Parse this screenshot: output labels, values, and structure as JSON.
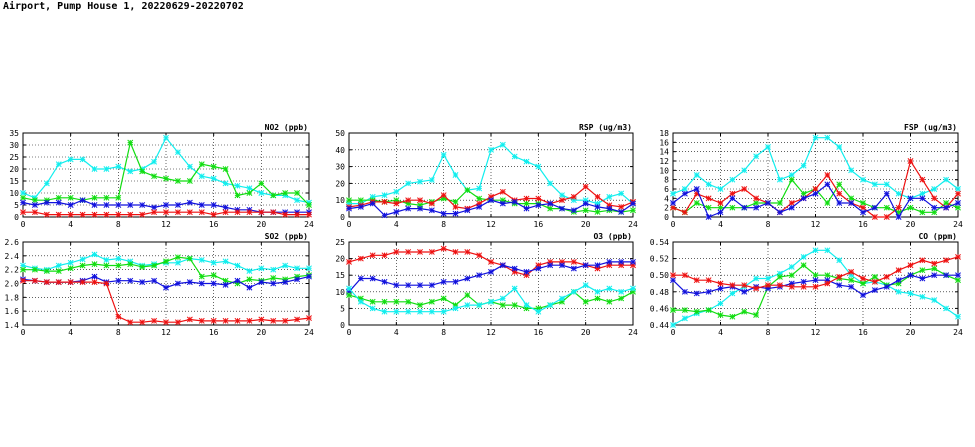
{
  "title": "Airport, Pump House 1, 20220629-20220702",
  "colors": {
    "red": "#ee1111",
    "green": "#11dd11",
    "blue": "#1111dd",
    "cyan": "#11eeee"
  },
  "chart_data": [
    {
      "type": "line",
      "title": "NO2 (ppb)",
      "x_ticks": [
        0,
        4,
        8,
        12,
        16,
        20,
        24
      ],
      "xlim": [
        0,
        24
      ],
      "ylim": [
        0,
        35
      ],
      "y_ticks": [
        "0",
        "5",
        "10",
        "15",
        "20",
        "25",
        "30",
        "35"
      ],
      "y_values": [
        0,
        5,
        10,
        15,
        20,
        25,
        30,
        35
      ],
      "grid": true,
      "series": [
        {
          "color": "cyan",
          "values": [
            10,
            8,
            14,
            22,
            24,
            24,
            20,
            20,
            21,
            19,
            20,
            23,
            33,
            27,
            21,
            17,
            16,
            14,
            13,
            12,
            10,
            9,
            9,
            7,
            6
          ]
        },
        {
          "color": "green",
          "values": [
            8,
            7,
            7,
            8,
            8,
            7,
            8,
            8,
            8,
            31,
            19,
            17,
            16,
            15,
            15,
            22,
            21,
            20,
            9,
            10,
            14,
            9,
            10,
            10,
            5
          ]
        },
        {
          "color": "blue",
          "values": [
            6,
            5,
            6,
            6,
            5,
            7,
            5,
            5,
            5,
            5,
            5,
            4,
            5,
            5,
            6,
            5,
            5,
            4,
            3,
            3,
            2,
            2,
            2,
            2,
            2
          ]
        },
        {
          "color": "red",
          "values": [
            2,
            2,
            1,
            1,
            1,
            1,
            1,
            1,
            1,
            1,
            1,
            2,
            2,
            2,
            2,
            2,
            1,
            2,
            2,
            2,
            2,
            2,
            1,
            1,
            1
          ]
        }
      ]
    },
    {
      "type": "line",
      "title": "RSP (ug/m3)",
      "x_ticks": [
        0,
        4,
        8,
        12,
        16,
        20,
        24
      ],
      "xlim": [
        0,
        24
      ],
      "ylim": [
        0,
        50
      ],
      "y_ticks": [
        "0",
        "10",
        "20",
        "30",
        "40",
        "50"
      ],
      "y_values": [
        0,
        10,
        20,
        30,
        40,
        50
      ],
      "grid": true,
      "series": [
        {
          "color": "cyan",
          "values": [
            8,
            8,
            12,
            13,
            15,
            20,
            21,
            22,
            37,
            25,
            16,
            17,
            40,
            43,
            36,
            33,
            30,
            20,
            13,
            10,
            10,
            8,
            12,
            14,
            8
          ]
        },
        {
          "color": "green",
          "values": [
            10,
            10,
            10,
            9,
            10,
            8,
            7,
            9,
            11,
            9,
            16,
            11,
            10,
            10,
            8,
            8,
            8,
            5,
            5,
            3,
            4,
            3,
            4,
            3,
            4
          ]
        },
        {
          "color": "red",
          "values": [
            6,
            7,
            9,
            9,
            8,
            10,
            10,
            8,
            13,
            6,
            5,
            8,
            12,
            15,
            10,
            11,
            11,
            8,
            10,
            12,
            18,
            12,
            7,
            6,
            9
          ]
        },
        {
          "color": "blue",
          "values": [
            5,
            6,
            8,
            1,
            3,
            5,
            5,
            4,
            2,
            2,
            4,
            6,
            10,
            8,
            9,
            5,
            7,
            8,
            5,
            4,
            8,
            6,
            5,
            3,
            8
          ]
        }
      ]
    },
    {
      "type": "line",
      "title": "FSP (ug/m3)",
      "x_ticks": [
        0,
        4,
        8,
        12,
        16,
        20,
        24
      ],
      "xlim": [
        0,
        24
      ],
      "ylim": [
        0,
        18
      ],
      "y_ticks": [
        "0",
        "2",
        "4",
        "6",
        "8",
        "10",
        "12",
        "14",
        "16",
        "18"
      ],
      "y_values": [
        0,
        2,
        4,
        6,
        8,
        10,
        12,
        14,
        16,
        18
      ],
      "grid": true,
      "series": [
        {
          "color": "cyan",
          "values": [
            5,
            6,
            9,
            7,
            6,
            8,
            10,
            13,
            15,
            8,
            9,
            11,
            17,
            17,
            15,
            10,
            8,
            7,
            7,
            5,
            4,
            5,
            6,
            8,
            6
          ]
        },
        {
          "color": "green",
          "values": [
            2,
            1,
            3,
            2,
            2,
            2,
            2,
            3,
            3,
            3,
            8,
            5,
            6,
            3,
            7,
            4,
            3,
            2,
            2,
            1,
            2,
            1,
            1,
            3,
            2
          ]
        },
        {
          "color": "red",
          "values": [
            2,
            1,
            5,
            4,
            3,
            5,
            6,
            4,
            3,
            1,
            3,
            4,
            6,
            9,
            5,
            3,
            2,
            0,
            0,
            2,
            12,
            8,
            4,
            2,
            5
          ]
        },
        {
          "color": "blue",
          "values": [
            3,
            5,
            6,
            0,
            1,
            4,
            2,
            2,
            3,
            1,
            2,
            4,
            5,
            7,
            3,
            3,
            1,
            2,
            5,
            0,
            4,
            4,
            2,
            2,
            3
          ]
        }
      ]
    },
    {
      "type": "line",
      "title": "SO2 (ppb)",
      "x_ticks": [
        0,
        4,
        8,
        12,
        16,
        20,
        24
      ],
      "xlim": [
        0,
        24
      ],
      "ylim": [
        1.4,
        2.6
      ],
      "y_ticks": [
        "1.4",
        "1.6",
        "1.8",
        "2.0",
        "2.2",
        "2.4",
        "2.6"
      ],
      "y_values": [
        1.4,
        1.6,
        1.8,
        2.0,
        2.2,
        2.4,
        2.6
      ],
      "grid": true,
      "series": [
        {
          "color": "cyan",
          "values": [
            2.26,
            2.22,
            2.2,
            2.26,
            2.3,
            2.35,
            2.42,
            2.34,
            2.36,
            2.32,
            2.26,
            2.28,
            2.3,
            2.3,
            2.36,
            2.34,
            2.3,
            2.32,
            2.26,
            2.18,
            2.22,
            2.2,
            2.26,
            2.22,
            2.22
          ]
        },
        {
          "color": "green",
          "values": [
            2.2,
            2.2,
            2.18,
            2.18,
            2.22,
            2.26,
            2.28,
            2.26,
            2.26,
            2.28,
            2.24,
            2.26,
            2.32,
            2.38,
            2.36,
            2.1,
            2.12,
            2.04,
            2.0,
            2.06,
            2.04,
            2.08,
            2.06,
            2.1,
            2.12
          ]
        },
        {
          "color": "blue",
          "values": [
            2.06,
            2.04,
            2.02,
            2.02,
            2.02,
            2.04,
            2.1,
            2.02,
            2.04,
            2.04,
            2.02,
            2.04,
            1.94,
            2.0,
            2.02,
            2.0,
            2.0,
            1.98,
            2.04,
            1.94,
            2.02,
            2.0,
            2.02,
            2.06,
            2.1
          ]
        },
        {
          "color": "red",
          "values": [
            2.04,
            2.04,
            2.02,
            2.02,
            2.02,
            2.02,
            2.02,
            2.0,
            1.52,
            1.44,
            1.44,
            1.46,
            1.44,
            1.44,
            1.48,
            1.46,
            1.46,
            1.46,
            1.46,
            1.46,
            1.48,
            1.46,
            1.46,
            1.48,
            1.5
          ]
        }
      ]
    },
    {
      "type": "line",
      "title": "O3 (ppb)",
      "x_ticks": [
        0,
        4,
        8,
        12,
        16,
        20,
        24
      ],
      "xlim": [
        0,
        24
      ],
      "ylim": [
        0,
        25
      ],
      "y_ticks": [
        "0",
        "5",
        "10",
        "15",
        "20",
        "25"
      ],
      "y_values": [
        0,
        5,
        10,
        15,
        20,
        25
      ],
      "grid": true,
      "series": [
        {
          "color": "red",
          "values": [
            19,
            20,
            21,
            21,
            22,
            22,
            22,
            22,
            23,
            22,
            22,
            21,
            19,
            18,
            16,
            15,
            18,
            19,
            19,
            19,
            18,
            17,
            18,
            18,
            18
          ]
        },
        {
          "color": "blue",
          "values": [
            10,
            14,
            14,
            13,
            12,
            12,
            12,
            12,
            13,
            13,
            14,
            15,
            16,
            18,
            17,
            16,
            17,
            18,
            18,
            17,
            18,
            18,
            19,
            19,
            19
          ]
        },
        {
          "color": "green",
          "values": [
            9,
            8,
            7,
            7,
            7,
            7,
            6,
            7,
            8,
            6,
            9,
            6,
            7,
            6,
            6,
            5,
            5,
            6,
            7,
            10,
            7,
            8,
            7,
            8,
            10
          ]
        },
        {
          "color": "cyan",
          "values": [
            11,
            7,
            5,
            4,
            4,
            4,
            4,
            4,
            4,
            5,
            6,
            6,
            7,
            8,
            11,
            6,
            4,
            6,
            8,
            10,
            12,
            10,
            11,
            10,
            11
          ]
        }
      ]
    },
    {
      "type": "line",
      "title": "CO (ppm)",
      "x_ticks": [
        0,
        4,
        8,
        12,
        16,
        20,
        24
      ],
      "xlim": [
        0,
        24
      ],
      "ylim": [
        0.44,
        0.54
      ],
      "y_ticks": [
        "0.44",
        "0.46",
        "0.48",
        "0.50",
        "0.52",
        "0.54"
      ],
      "y_values": [
        0.44,
        0.46,
        0.48,
        0.5,
        0.52,
        0.54
      ],
      "grid": true,
      "series": [
        {
          "color": "cyan",
          "values": [
            0.44,
            0.448,
            0.454,
            0.458,
            0.466,
            0.478,
            0.486,
            0.496,
            0.496,
            0.502,
            0.51,
            0.522,
            0.53,
            0.53,
            0.518,
            0.5,
            0.49,
            0.492,
            0.488,
            0.48,
            0.478,
            0.474,
            0.47,
            0.46,
            0.45
          ]
        },
        {
          "color": "green",
          "values": [
            0.458,
            0.458,
            0.456,
            0.458,
            0.452,
            0.45,
            0.456,
            0.452,
            0.486,
            0.498,
            0.5,
            0.512,
            0.5,
            0.5,
            0.496,
            0.494,
            0.49,
            0.498,
            0.488,
            0.49,
            0.5,
            0.506,
            0.508,
            0.5,
            0.494
          ]
        },
        {
          "color": "blue",
          "values": [
            0.494,
            0.48,
            0.478,
            0.48,
            0.484,
            0.486,
            0.48,
            0.486,
            0.484,
            0.486,
            0.49,
            0.492,
            0.494,
            0.494,
            0.488,
            0.486,
            0.476,
            0.482,
            0.486,
            0.494,
            0.5,
            0.496,
            0.5,
            0.5,
            0.5
          ]
        },
        {
          "color": "red",
          "values": [
            0.5,
            0.5,
            0.494,
            0.494,
            0.49,
            0.488,
            0.488,
            0.484,
            0.488,
            0.488,
            0.486,
            0.486,
            0.486,
            0.49,
            0.498,
            0.504,
            0.496,
            0.492,
            0.498,
            0.506,
            0.512,
            0.518,
            0.514,
            0.518,
            0.522
          ]
        }
      ]
    }
  ]
}
